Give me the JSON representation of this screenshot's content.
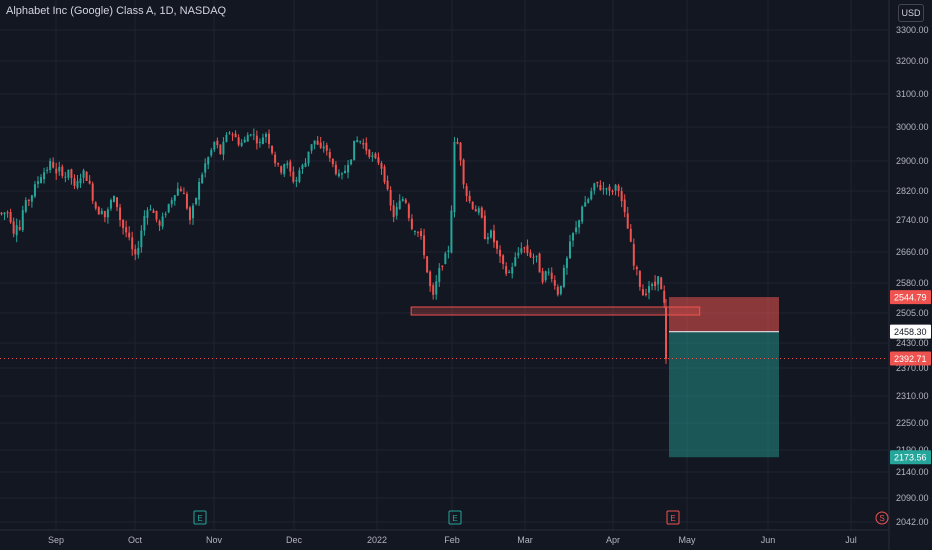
{
  "title": "Alphabet Inc (Google) Class A, 1D, NASDAQ",
  "currency": "USD",
  "colors": {
    "background": "#131722",
    "up": "#26a69a",
    "down": "#ef5350",
    "text": "#d1d4dc",
    "grid": "#1f2330"
  },
  "chart_data": {
    "type": "candlestick",
    "y_ticks": [
      3300,
      3200,
      3100,
      3000,
      2900,
      2820,
      2740,
      2660,
      2580,
      2505,
      2430,
      2370,
      2310,
      2250,
      2190,
      2140,
      2090,
      2042
    ],
    "y_tick_labels": [
      "3300.00",
      "3200.00",
      "3100.00",
      "3000.00",
      "2900.00",
      "2820.00",
      "2740.00",
      "2660.00",
      "2580.00",
      "2505.00",
      "2430.00",
      "2370.00",
      "2310.00",
      "2250.00",
      "2190.00",
      "2140.00",
      "2090.00",
      "2042.00"
    ],
    "x_labels": [
      "Sep",
      "Oct",
      "Nov",
      "Dec",
      "2022",
      "Feb",
      "Mar",
      "Apr",
      "May",
      "Jun",
      "Jul"
    ],
    "price_labels": [
      {
        "value": "2544.79",
        "kind": "stop"
      },
      {
        "value": "2458.30",
        "kind": "entry"
      },
      {
        "value": "2392.71",
        "kind": "last"
      },
      {
        "value": "2173.56",
        "kind": "target"
      }
    ],
    "earnings_markers": [
      "E",
      "E",
      "E"
    ],
    "dividend_marker": "S",
    "series_path": [
      [
        0,
        2760
      ],
      [
        3,
        2750
      ],
      [
        6,
        2770
      ],
      [
        10,
        2750
      ],
      [
        14,
        2710
      ],
      [
        17,
        2740
      ],
      [
        20,
        2715
      ],
      [
        23,
        2770
      ],
      [
        27,
        2790
      ],
      [
        30,
        2800
      ],
      [
        35,
        2830
      ],
      [
        40,
        2860
      ],
      [
        47,
        2880
      ],
      [
        52,
        2900
      ],
      [
        56,
        2860
      ],
      [
        60,
        2880
      ],
      [
        65,
        2860
      ],
      [
        70,
        2870
      ],
      [
        75,
        2820
      ],
      [
        80,
        2860
      ],
      [
        85,
        2870
      ],
      [
        90,
        2830
      ],
      [
        95,
        2780
      ],
      [
        98,
        2760
      ],
      [
        102,
        2775
      ],
      [
        106,
        2740
      ],
      [
        110,
        2790
      ],
      [
        115,
        2800
      ],
      [
        118,
        2770
      ],
      [
        121,
        2730
      ],
      [
        126,
        2710
      ],
      [
        130,
        2680
      ],
      [
        135,
        2640
      ],
      [
        140,
        2700
      ],
      [
        145,
        2760
      ],
      [
        150,
        2780
      ],
      [
        155,
        2750
      ],
      [
        160,
        2720
      ],
      [
        165,
        2760
      ],
      [
        170,
        2790
      ],
      [
        175,
        2820
      ],
      [
        180,
        2830
      ],
      [
        185,
        2800
      ],
      [
        190,
        2740
      ],
      [
        195,
        2790
      ],
      [
        200,
        2850
      ],
      [
        205,
        2890
      ],
      [
        210,
        2920
      ],
      [
        215,
        2960
      ],
      [
        220,
        2920
      ],
      [
        225,
        2960
      ],
      [
        230,
        2990
      ],
      [
        235,
        2970
      ],
      [
        240,
        2950
      ],
      [
        245,
        2960
      ],
      [
        250,
        2990
      ],
      [
        255,
        2970
      ],
      [
        260,
        2950
      ],
      [
        265,
        2990
      ],
      [
        270,
        2950
      ],
      [
        275,
        2900
      ],
      [
        280,
        2870
      ],
      [
        285,
        2900
      ],
      [
        290,
        2870
      ],
      [
        295,
        2840
      ],
      [
        300,
        2880
      ],
      [
        305,
        2890
      ],
      [
        310,
        2950
      ],
      [
        315,
        2960
      ],
      [
        320,
        2930
      ],
      [
        325,
        2950
      ],
      [
        330,
        2900
      ],
      [
        335,
        2880
      ],
      [
        340,
        2850
      ],
      [
        343,
        2860
      ],
      [
        348,
        2900
      ],
      [
        352,
        2920
      ],
      [
        355,
        2960
      ],
      [
        360,
        2960
      ],
      [
        365,
        2940
      ],
      [
        370,
        2920
      ],
      [
        375,
        2900
      ],
      [
        380,
        2900
      ],
      [
        385,
        2850
      ],
      [
        390,
        2780
      ],
      [
        394,
        2750
      ],
      [
        398,
        2780
      ],
      [
        403,
        2800
      ],
      [
        407,
        2790
      ],
      [
        410,
        2730
      ],
      [
        415,
        2720
      ],
      [
        420,
        2700
      ],
      [
        425,
        2650
      ],
      [
        428,
        2590
      ],
      [
        433,
        2540
      ],
      [
        438,
        2600
      ],
      [
        443,
        2640
      ],
      [
        447,
        2650
      ],
      [
        450,
        2690
      ],
      [
        455,
        2980
      ],
      [
        460,
        2920
      ],
      [
        465,
        2820
      ],
      [
        470,
        2790
      ],
      [
        475,
        2770
      ],
      [
        480,
        2760
      ],
      [
        485,
        2700
      ],
      [
        490,
        2710
      ],
      [
        495,
        2680
      ],
      [
        500,
        2640
      ],
      [
        503,
        2620
      ],
      [
        508,
        2600
      ],
      [
        513,
        2630
      ],
      [
        517,
        2650
      ],
      [
        522,
        2680
      ],
      [
        527,
        2660
      ],
      [
        532,
        2650
      ],
      [
        537,
        2640
      ],
      [
        542,
        2590
      ],
      [
        547,
        2610
      ],
      [
        552,
        2600
      ],
      [
        557,
        2550
      ],
      [
        562,
        2590
      ],
      [
        567,
        2640
      ],
      [
        572,
        2700
      ],
      [
        577,
        2720
      ],
      [
        582,
        2780
      ],
      [
        586,
        2780
      ],
      [
        590,
        2810
      ],
      [
        594,
        2830
      ],
      [
        598,
        2840
      ],
      [
        602,
        2820
      ],
      [
        606,
        2840
      ],
      [
        610,
        2810
      ],
      [
        614,
        2830
      ],
      [
        618,
        2840
      ],
      [
        622,
        2780
      ],
      [
        626,
        2740
      ],
      [
        630,
        2690
      ],
      [
        634,
        2620
      ],
      [
        638,
        2600
      ],
      [
        642,
        2550
      ],
      [
        646,
        2560
      ],
      [
        650,
        2580
      ],
      [
        654,
        2560
      ],
      [
        658,
        2610
      ],
      [
        661,
        2560
      ],
      [
        664,
        2540
      ],
      [
        666,
        2400
      ]
    ],
    "support_zone": {
      "from_x_pct": 0.463,
      "to_x_pct": 0.788,
      "top": 2520,
      "bottom": 2500
    },
    "position": {
      "entry": 2458.3,
      "stop": 2544.79,
      "target": 2173.56
    }
  }
}
